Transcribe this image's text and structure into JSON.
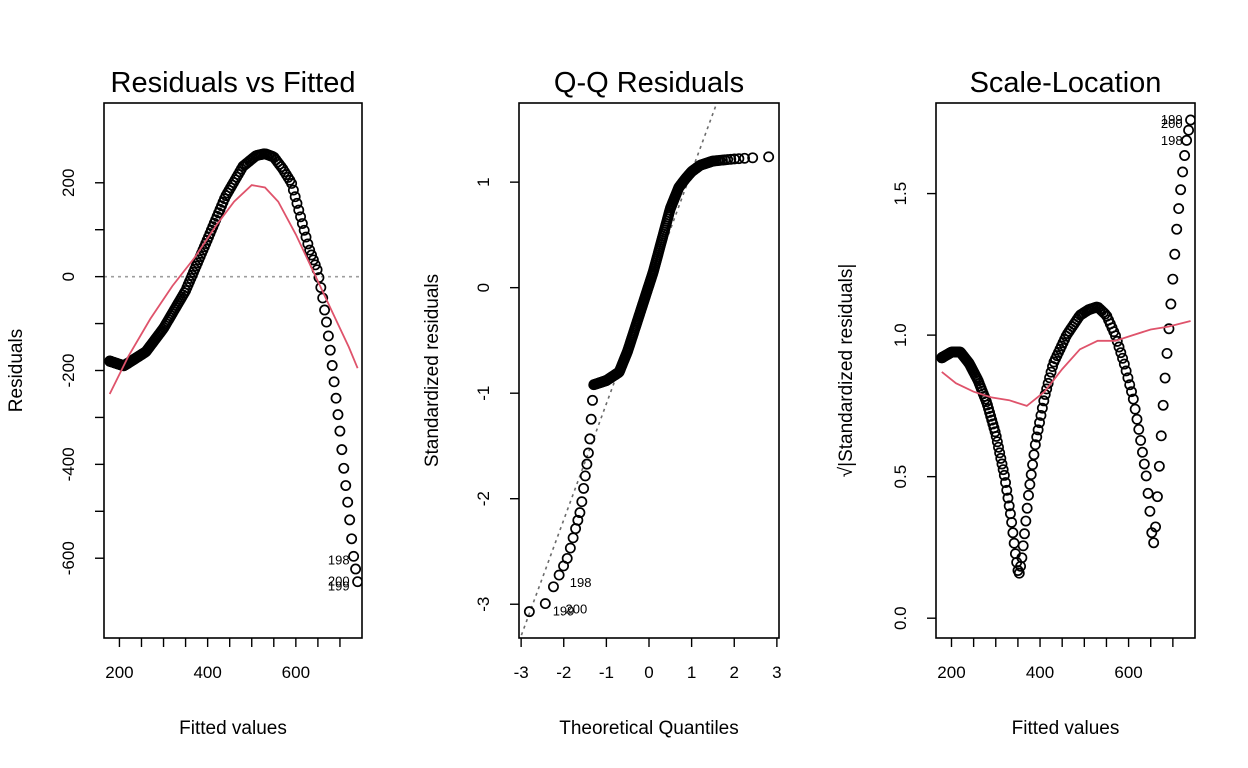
{
  "colors": {
    "smooth_line": "#DF536B",
    "reference_line": "#9E9E9E",
    "qq_line": "#6B6B6B",
    "points": "#000000"
  },
  "chart_data": [
    {
      "type": "scatter",
      "title": "Residuals vs Fitted",
      "xlabel": "Fitted values",
      "ylabel": "Residuals",
      "xlim": [
        165,
        750
      ],
      "ylim": [
        -770,
        370
      ],
      "xticks": [
        200,
        400,
        600
      ],
      "yticks": [
        -600,
        -400,
        -200,
        0,
        200
      ],
      "reference_y": 0,
      "fitted_range": [
        178,
        740
      ],
      "residual_curve": {
        "x": [
          178,
          210,
          260,
          300,
          350,
          400,
          440,
          480,
          510,
          530,
          550,
          570,
          590,
          610,
          630,
          650,
          660,
          670,
          680,
          690,
          700,
          710,
          720,
          730,
          740
        ],
        "y": [
          -180,
          -190,
          -160,
          -110,
          -30,
          80,
          170,
          235,
          258,
          262,
          255,
          230,
          200,
          130,
          60,
          10,
          -40,
          -100,
          -170,
          -250,
          -330,
          -420,
          -500,
          -590,
          -650
        ]
      },
      "smooth_curve": {
        "x": [
          178,
          220,
          270,
          320,
          370,
          420,
          460,
          500,
          530,
          560,
          600,
          640,
          680,
          720,
          740
        ],
        "y": [
          -250,
          -170,
          -90,
          -20,
          40,
          110,
          160,
          195,
          190,
          160,
          90,
          10,
          -70,
          -150,
          -195
        ]
      },
      "point_labels": [
        {
          "text": "198",
          "x": 740,
          "y": -605
        },
        {
          "text": "200",
          "x": 740,
          "y": -650
        },
        {
          "text": "199",
          "x": 740,
          "y": -660
        }
      ]
    },
    {
      "type": "scatter",
      "title": "Q-Q Residuals",
      "xlabel": "Theoretical Quantiles",
      "ylabel": "Standardized residuals",
      "xlim": [
        -3.05,
        3.05
      ],
      "ylim": [
        -3.32,
        1.75
      ],
      "xticks": [
        -3,
        -2,
        -1,
        0,
        1,
        2,
        3
      ],
      "yticks": [
        -3,
        -2,
        -1,
        0,
        1
      ],
      "qq_curve": {
        "x": [
          -2.8,
          -2.5,
          -2.2,
          -1.9,
          -1.6,
          -1.4,
          -1.3,
          -1.0,
          -0.7,
          -0.5,
          -0.3,
          -0.1,
          0.1,
          0.3,
          0.5,
          0.7,
          0.85,
          1.0,
          1.2,
          1.5,
          2.0,
          2.4,
          2.8
        ],
        "y": [
          -3.07,
          -3.05,
          -2.8,
          -2.55,
          -2.1,
          -1.5,
          -0.92,
          -0.88,
          -0.8,
          -0.6,
          -0.35,
          -0.1,
          0.15,
          0.45,
          0.75,
          0.95,
          1.03,
          1.1,
          1.16,
          1.2,
          1.22,
          1.23,
          1.24
        ]
      },
      "qq_line": {
        "intercept": 0,
        "slope": 1.1
      },
      "point_labels": [
        {
          "text": "198",
          "x": -2.0,
          "y": -2.8
        },
        {
          "text": "199",
          "x": -2.4,
          "y": -3.07
        },
        {
          "text": "200",
          "x": -2.1,
          "y": -3.05
        }
      ]
    },
    {
      "type": "scatter",
      "title": "Scale-Location",
      "xlabel": "Fitted values",
      "ylabel": "√|Standardized residuals|",
      "xlim": [
        165,
        750
      ],
      "ylim": [
        -0.07,
        1.82
      ],
      "xticks": [
        200,
        400,
        600
      ],
      "yticks": [
        0.0,
        0.5,
        1.0,
        1.5
      ],
      "fitted_range": [
        178,
        740
      ],
      "sqrt_curve": {
        "x": [
          178,
          200,
          220,
          240,
          260,
          280,
          300,
          320,
          335,
          345,
          352,
          358,
          365,
          375,
          390,
          410,
          430,
          460,
          490,
          510,
          530,
          550,
          570,
          590,
          610,
          625,
          640,
          650,
          655,
          660,
          670,
          680,
          690,
          700,
          710,
          720,
          730,
          740
        ],
        "y": [
          0.92,
          0.94,
          0.94,
          0.9,
          0.84,
          0.76,
          0.65,
          0.5,
          0.35,
          0.22,
          0.15,
          0.2,
          0.3,
          0.45,
          0.62,
          0.78,
          0.9,
          1.0,
          1.07,
          1.09,
          1.1,
          1.07,
          1.0,
          0.9,
          0.78,
          0.65,
          0.5,
          0.35,
          0.25,
          0.3,
          0.55,
          0.8,
          1.0,
          1.2,
          1.4,
          1.55,
          1.68,
          1.76
        ]
      },
      "smooth_curve": {
        "x": [
          178,
          210,
          250,
          290,
          330,
          370,
          410,
          450,
          490,
          530,
          570,
          610,
          650,
          690,
          740
        ],
        "y": [
          0.87,
          0.83,
          0.8,
          0.78,
          0.77,
          0.75,
          0.8,
          0.88,
          0.95,
          0.98,
          0.98,
          1.0,
          1.02,
          1.03,
          1.05
        ]
      },
      "point_labels": [
        {
          "text": "199",
          "x": 740,
          "y": 1.76
        },
        {
          "text": "200",
          "x": 740,
          "y": 1.745
        },
        {
          "text": "198",
          "x": 740,
          "y": 1.685
        }
      ]
    }
  ]
}
